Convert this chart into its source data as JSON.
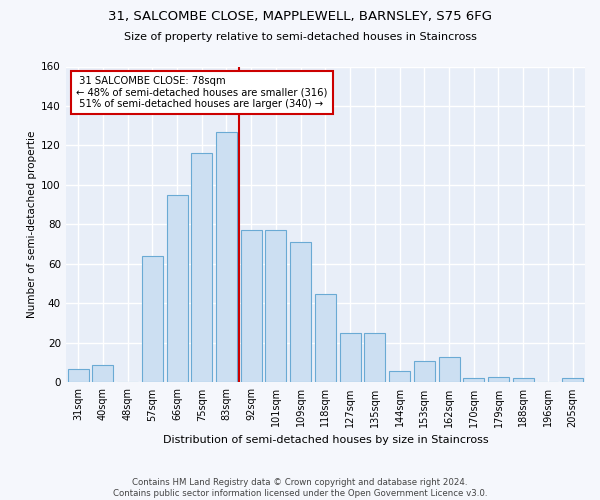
{
  "title": "31, SALCOMBE CLOSE, MAPPLEWELL, BARNSLEY, S75 6FG",
  "subtitle": "Size of property relative to semi-detached houses in Staincross",
  "xlabel": "Distribution of semi-detached houses by size in Staincross",
  "ylabel": "Number of semi-detached propertie",
  "categories": [
    "31sqm",
    "40sqm",
    "48sqm",
    "57sqm",
    "66sqm",
    "75sqm",
    "83sqm",
    "92sqm",
    "101sqm",
    "109sqm",
    "118sqm",
    "127sqm",
    "135sqm",
    "144sqm",
    "153sqm",
    "162sqm",
    "170sqm",
    "179sqm",
    "188sqm",
    "196sqm",
    "205sqm"
  ],
  "bar_values": [
    7,
    9,
    0,
    64,
    95,
    116,
    127,
    77,
    77,
    71,
    45,
    25,
    25,
    6,
    11,
    13,
    2,
    3,
    2,
    0,
    2
  ],
  "bar_color": "#ccdff2",
  "bar_edge_color": "#6aaad4",
  "vline_color": "#cc0000",
  "annotation_box_color": "#cc0000",
  "property_label": "31 SALCOMBE CLOSE: 78sqm",
  "smaller_pct": 48,
  "smaller_count": 316,
  "larger_pct": 51,
  "larger_count": 340,
  "vline_x": 6.5,
  "ylim": [
    0,
    160
  ],
  "yticks": [
    0,
    20,
    40,
    60,
    80,
    100,
    120,
    140,
    160
  ],
  "background_color": "#e8eef8",
  "grid_color": "#ffffff",
  "fig_background": "#f5f7fc",
  "footnote": "Contains HM Land Registry data © Crown copyright and database right 2024.\nContains public sector information licensed under the Open Government Licence v3.0."
}
